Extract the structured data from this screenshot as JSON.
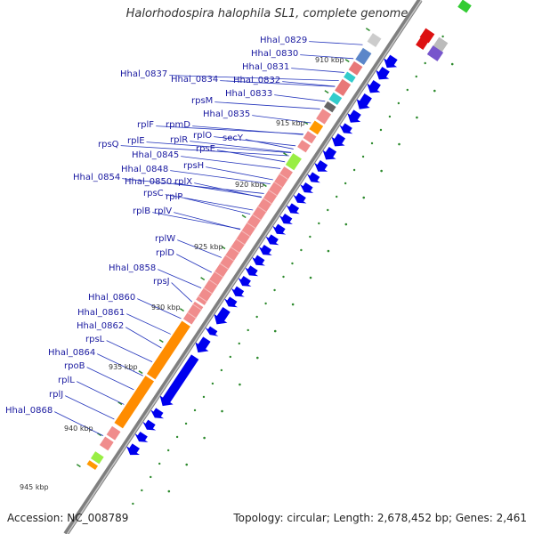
{
  "title": "Halorhodospira halophila SL1, complete genome",
  "footer": {
    "accession": "Accession: NC_008789",
    "topology": "Topology: circular; Length: 2,678,452 bp; Genes: 2,461"
  },
  "colors": {
    "backbone": "#888888",
    "ribosomal_protein": "#f08c8c",
    "other_gene": "#ff8c00",
    "forward_arrow": "#0000ff",
    "gene_label": "#1a1aa0",
    "tick_dot": "#2d8a2d"
  },
  "kbp_marks": [
    {
      "label": "910 kbp"
    },
    {
      "label": "915 kbp"
    },
    {
      "label": "920 kbp"
    },
    {
      "label": "925 kbp"
    },
    {
      "label": "930 kbp"
    },
    {
      "label": "935 kbp"
    },
    {
      "label": "940 kbp"
    },
    {
      "label": "945 kbp"
    }
  ],
  "genes": [
    {
      "label": "Hhal_0829"
    },
    {
      "label": "Hhal_0830"
    },
    {
      "label": "Hhal_0831"
    },
    {
      "label": "Hhal_0832"
    },
    {
      "label": "Hhal_0837"
    },
    {
      "label": "Hhal_0834"
    },
    {
      "label": "Hhal_0833"
    },
    {
      "label": "rpsM"
    },
    {
      "label": "Hhal_0835"
    },
    {
      "label": "rplF"
    },
    {
      "label": "rpmD"
    },
    {
      "label": "rplO"
    },
    {
      "label": "secY"
    },
    {
      "label": "rpsQ"
    },
    {
      "label": "rplE"
    },
    {
      "label": "rplR"
    },
    {
      "label": "rpsE"
    },
    {
      "label": "Hhal_0845"
    },
    {
      "label": "rpsH"
    },
    {
      "label": "Hhal_0848"
    },
    {
      "label": "Hhal_0850"
    },
    {
      "label": "rplX"
    },
    {
      "label": "Hhal_0854"
    },
    {
      "label": "rpsC"
    },
    {
      "label": "rplP"
    },
    {
      "label": "rplB"
    },
    {
      "label": "rplV"
    },
    {
      "label": "rplW"
    },
    {
      "label": "rplD"
    },
    {
      "label": "Hhal_0858"
    },
    {
      "label": "rpsJ"
    },
    {
      "label": "Hhal_0860"
    },
    {
      "label": "Hhal_0861"
    },
    {
      "label": "Hhal_0862"
    },
    {
      "label": "rpsL"
    },
    {
      "label": "Hhal_0864"
    },
    {
      "label": "rpoB"
    },
    {
      "label": "rplL"
    },
    {
      "label": "rplJ"
    },
    {
      "label": "Hhal_0868"
    }
  ]
}
